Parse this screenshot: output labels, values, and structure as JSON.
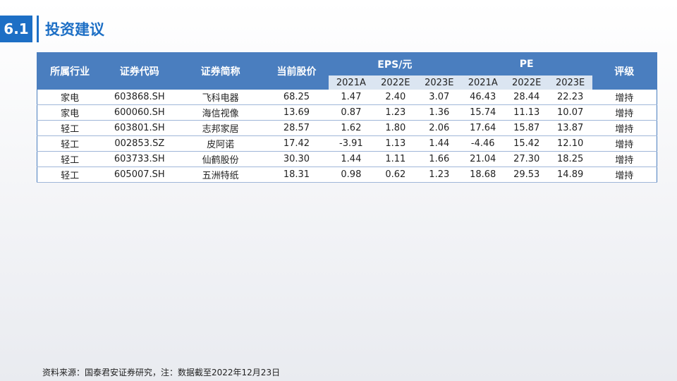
{
  "header": {
    "section": "6.1",
    "title": "投资建议"
  },
  "table": {
    "columns": [
      "所属行业",
      "证券代码",
      "证券简称",
      "当前股价",
      "EPS/元",
      "PE",
      "评级"
    ],
    "subcolumns": {
      "eps": [
        "2021A",
        "2022E",
        "2023E"
      ],
      "pe": [
        "2021A",
        "2022E",
        "2023E"
      ]
    },
    "rows": [
      [
        "家电",
        "603868.SH",
        "飞科电器",
        "68.25",
        "1.47",
        "2.40",
        "3.07",
        "46.43",
        "28.44",
        "22.23",
        "增持"
      ],
      [
        "家电",
        "600060.SH",
        "海信视像",
        "13.69",
        "0.87",
        "1.23",
        "1.36",
        "15.74",
        "11.13",
        "10.07",
        "增持"
      ],
      [
        "轻工",
        "603801.SH",
        "志邦家居",
        "28.57",
        "1.62",
        "1.80",
        "2.06",
        "17.64",
        "15.87",
        "13.87",
        "增持"
      ],
      [
        "轻工",
        "002853.SZ",
        "皮阿诺",
        "17.42",
        "-3.91",
        "1.13",
        "1.44",
        "-4.46",
        "15.42",
        "12.10",
        "增持"
      ],
      [
        "轻工",
        "603733.SH",
        "仙鹤股份",
        "30.30",
        "1.44",
        "1.11",
        "1.66",
        "21.04",
        "27.30",
        "18.25",
        "增持"
      ],
      [
        "轻工",
        "605007.SH",
        "五洲特纸",
        "18.31",
        "0.98",
        "0.62",
        "1.23",
        "18.68",
        "29.53",
        "14.89",
        "增持"
      ]
    ]
  },
  "footer": {
    "note": "资料来源：国泰君安证券研究，注：数据截至2022年12月23日"
  }
}
